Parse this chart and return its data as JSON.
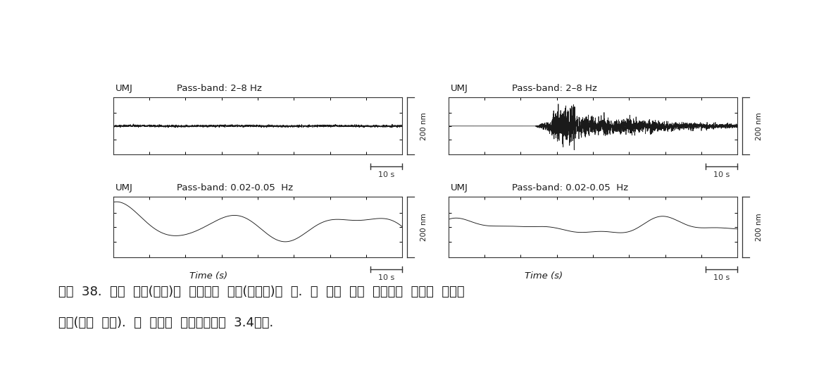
{
  "fig_width": 11.9,
  "fig_height": 5.22,
  "bg_color": "#ffffff",
  "panel_bg": "#ffffff",
  "label_station": "UMJ",
  "label_hf": "Pass-band: 2–8 Hz",
  "label_lf": "Pass-band: 0.02-0.05  Hz",
  "ylabel_label": "200 nm",
  "xlabel": "Time (s)",
  "scalebar_label": "10 s",
  "caption_line1": "그림  38.  느린  지진(왜쪽)과  일반적인  지진(오른쪽)의  예.  두  개의  다른  대역통과  필터가  적용되",
  "caption_line2": "었음(위와  아래).  두  지진의  모멘트규모는  3.4이다.",
  "line_color": "#1a1a1a",
  "axis_color": "#333333",
  "text_color": "#1a1a1a",
  "caption_fontsize": 13,
  "label_fontsize": 9.5,
  "station_fontsize": 9.5,
  "scalebar_fontsize": 8
}
